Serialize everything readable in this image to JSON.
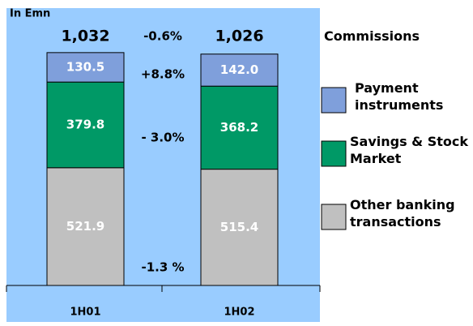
{
  "chart_data": {
    "type": "stacked_bar",
    "title": "In Emn",
    "legend_title": "Commissions",
    "categories": [
      "1H01",
      "1H02"
    ],
    "series": [
      {
        "name": "Payment instruments",
        "color": "#7f9fdb",
        "values": [
          130.5,
          142
        ],
        "value_labels": [
          "130.5",
          "142.0"
        ]
      },
      {
        "name": "Savings & Stock Market",
        "color": "#009966",
        "values": [
          379.8,
          368.2
        ],
        "value_labels": [
          "379.8",
          "368.2"
        ]
      },
      {
        "name": "Other banking transactions",
        "color": "#c0c0c0",
        "values": [
          521.9,
          515.4
        ],
        "value_labels": [
          "521.9",
          "515.4"
        ]
      }
    ],
    "totals": [
      1032,
      1026
    ],
    "total_labels": [
      "1,032",
      "1,026"
    ],
    "annotations": [
      "-0.6%",
      "+8.8%",
      "- 3.0%",
      "-1.3 %"
    ],
    "ylim": [
      0,
      1100
    ],
    "background": "#99ccff"
  }
}
